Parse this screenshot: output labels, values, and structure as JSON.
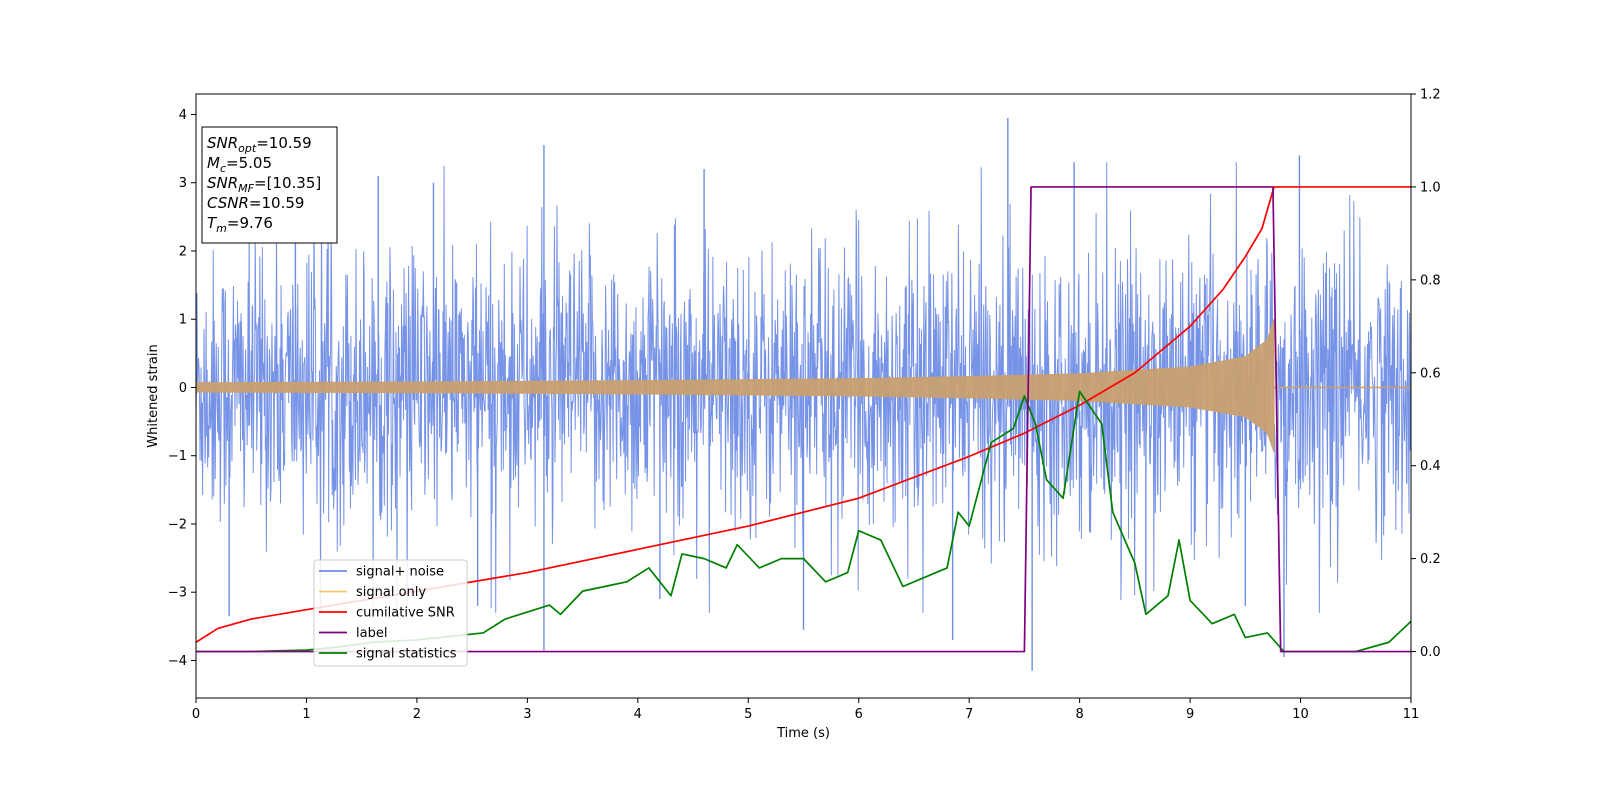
{
  "chart_data": {
    "type": "line",
    "xlabel": "Time (s)",
    "ylabel": "Whitened strain",
    "xlim": [
      0,
      11
    ],
    "ylim": [
      -4.55,
      4.3
    ],
    "y2lim": [
      -0.1,
      1.2
    ],
    "x_ticks": [
      0,
      1,
      2,
      3,
      4,
      5,
      6,
      7,
      8,
      9,
      10,
      11
    ],
    "y_ticks": [
      -4,
      -3,
      -2,
      -1,
      0,
      1,
      2,
      3,
      4
    ],
    "y2_ticks": [
      "0.0",
      "0.2",
      "0.4",
      "0.6",
      "0.8",
      "1.0",
      "1.2"
    ],
    "grid": false,
    "legend_position": "lower-left",
    "info_box": {
      "position": "top-left",
      "lines": [
        {
          "main": "SNR",
          "sub": "opt",
          "value": "=10.59"
        },
        {
          "main": "M",
          "sub": "c",
          "value": "=5.05"
        },
        {
          "main": "SNR",
          "sub": "MF",
          "value": "=[10.35]"
        },
        {
          "main": "CSNR",
          "sub": "",
          "value": "=10.59"
        },
        {
          "main": "T",
          "sub": "m",
          "value": "=9.76"
        }
      ]
    },
    "series": [
      {
        "name": "signal+ noise",
        "color": "#6f8de6",
        "axis": "left",
        "kind": "noise",
        "typical_range": [
          -1.6,
          1.6
        ],
        "extremes": [
          {
            "x": 0.3,
            "y": -3.35
          },
          {
            "x": 1.65,
            "y": 3.1
          },
          {
            "x": 2.15,
            "y": 3.0
          },
          {
            "x": 2.55,
            "y": -3.2
          },
          {
            "x": 3.15,
            "y": 3.55
          },
          {
            "x": 3.15,
            "y": -3.85
          },
          {
            "x": 4.6,
            "y": 3.2
          },
          {
            "x": 5.5,
            "y": -3.55
          },
          {
            "x": 6.85,
            "y": -3.7
          },
          {
            "x": 7.35,
            "y": 3.95
          },
          {
            "x": 7.57,
            "y": -4.15
          },
          {
            "x": 7.95,
            "y": 3.3
          },
          {
            "x": 9.5,
            "y": -3.2
          },
          {
            "x": 9.99,
            "y": 3.4
          },
          {
            "x": 9.85,
            "y": -3.95
          },
          {
            "x": 8.6,
            "y": -3.3
          },
          {
            "x": 0.9,
            "y": 2.8
          },
          {
            "x": 4.2,
            "y": -3.1
          }
        ]
      },
      {
        "name": "signal only",
        "color": "#c8a070",
        "legend_color": "#f2c869",
        "axis": "left",
        "kind": "chirp",
        "merger_time": 9.76,
        "envelope": [
          {
            "x": 0,
            "y": 0.07
          },
          {
            "x": 2,
            "y": 0.08
          },
          {
            "x": 4,
            "y": 0.1
          },
          {
            "x": 6,
            "y": 0.13
          },
          {
            "x": 7,
            "y": 0.16
          },
          {
            "x": 8,
            "y": 0.2
          },
          {
            "x": 9,
            "y": 0.3
          },
          {
            "x": 9.5,
            "y": 0.45
          },
          {
            "x": 9.7,
            "y": 0.7
          },
          {
            "x": 9.76,
            "y": 1.0
          }
        ]
      },
      {
        "name": "cumilative SNR",
        "color": "#ff0000",
        "axis": "right",
        "points": [
          {
            "x": 0,
            "y": 0.02
          },
          {
            "x": 0.2,
            "y": 0.05
          },
          {
            "x": 0.5,
            "y": 0.07
          },
          {
            "x": 1,
            "y": 0.09
          },
          {
            "x": 2,
            "y": 0.13
          },
          {
            "x": 3,
            "y": 0.17
          },
          {
            "x": 4,
            "y": 0.22
          },
          {
            "x": 5,
            "y": 0.27
          },
          {
            "x": 6,
            "y": 0.33
          },
          {
            "x": 7,
            "y": 0.42
          },
          {
            "x": 7.5,
            "y": 0.47
          },
          {
            "x": 8,
            "y": 0.53
          },
          {
            "x": 8.5,
            "y": 0.6
          },
          {
            "x": 9,
            "y": 0.7
          },
          {
            "x": 9.3,
            "y": 0.78
          },
          {
            "x": 9.5,
            "y": 0.85
          },
          {
            "x": 9.65,
            "y": 0.91
          },
          {
            "x": 9.76,
            "y": 1.0
          },
          {
            "x": 11,
            "y": 1.0
          }
        ]
      },
      {
        "name": "label",
        "color": "#800080",
        "axis": "right",
        "points": [
          {
            "x": 0,
            "y": 0.0
          },
          {
            "x": 7.5,
            "y": 0.0
          },
          {
            "x": 7.56,
            "y": 1.0
          },
          {
            "x": 9.75,
            "y": 1.0
          },
          {
            "x": 9.82,
            "y": 0.0
          },
          {
            "x": 11,
            "y": 0.0
          }
        ]
      },
      {
        "name": "signal statistics",
        "color": "#008000",
        "axis": "right",
        "points": [
          {
            "x": 0,
            "y": 0.0
          },
          {
            "x": 0.5,
            "y": 0.0
          },
          {
            "x": 1,
            "y": 0.003
          },
          {
            "x": 1.3,
            "y": 0.01
          },
          {
            "x": 1.6,
            "y": 0.02
          },
          {
            "x": 2,
            "y": 0.025
          },
          {
            "x": 2.2,
            "y": 0.03
          },
          {
            "x": 2.4,
            "y": 0.035
          },
          {
            "x": 2.6,
            "y": 0.04
          },
          {
            "x": 2.8,
            "y": 0.07
          },
          {
            "x": 3,
            "y": 0.085
          },
          {
            "x": 3.2,
            "y": 0.1
          },
          {
            "x": 3.3,
            "y": 0.08
          },
          {
            "x": 3.5,
            "y": 0.13
          },
          {
            "x": 3.7,
            "y": 0.14
          },
          {
            "x": 3.9,
            "y": 0.15
          },
          {
            "x": 4.1,
            "y": 0.18
          },
          {
            "x": 4.3,
            "y": 0.12
          },
          {
            "x": 4.4,
            "y": 0.21
          },
          {
            "x": 4.6,
            "y": 0.2
          },
          {
            "x": 4.8,
            "y": 0.18
          },
          {
            "x": 4.9,
            "y": 0.23
          },
          {
            "x": 5.1,
            "y": 0.18
          },
          {
            "x": 5.3,
            "y": 0.2
          },
          {
            "x": 5.5,
            "y": 0.2
          },
          {
            "x": 5.7,
            "y": 0.15
          },
          {
            "x": 5.9,
            "y": 0.17
          },
          {
            "x": 6.0,
            "y": 0.26
          },
          {
            "x": 6.2,
            "y": 0.24
          },
          {
            "x": 6.4,
            "y": 0.14
          },
          {
            "x": 6.6,
            "y": 0.16
          },
          {
            "x": 6.8,
            "y": 0.18
          },
          {
            "x": 6.9,
            "y": 0.3
          },
          {
            "x": 7.0,
            "y": 0.27
          },
          {
            "x": 7.2,
            "y": 0.45
          },
          {
            "x": 7.4,
            "y": 0.48
          },
          {
            "x": 7.5,
            "y": 0.55
          },
          {
            "x": 7.6,
            "y": 0.49
          },
          {
            "x": 7.7,
            "y": 0.37
          },
          {
            "x": 7.85,
            "y": 0.33
          },
          {
            "x": 8.0,
            "y": 0.56
          },
          {
            "x": 8.2,
            "y": 0.49
          },
          {
            "x": 8.3,
            "y": 0.3
          },
          {
            "x": 8.5,
            "y": 0.19
          },
          {
            "x": 8.6,
            "y": 0.08
          },
          {
            "x": 8.7,
            "y": 0.1
          },
          {
            "x": 8.8,
            "y": 0.12
          },
          {
            "x": 8.9,
            "y": 0.24
          },
          {
            "x": 9.0,
            "y": 0.11
          },
          {
            "x": 9.2,
            "y": 0.06
          },
          {
            "x": 9.4,
            "y": 0.08
          },
          {
            "x": 9.5,
            "y": 0.03
          },
          {
            "x": 9.7,
            "y": 0.04
          },
          {
            "x": 9.85,
            "y": 0.0
          },
          {
            "x": 10.5,
            "y": 0.0
          },
          {
            "x": 10.8,
            "y": 0.02
          },
          {
            "x": 11,
            "y": 0.065
          }
        ]
      }
    ]
  }
}
